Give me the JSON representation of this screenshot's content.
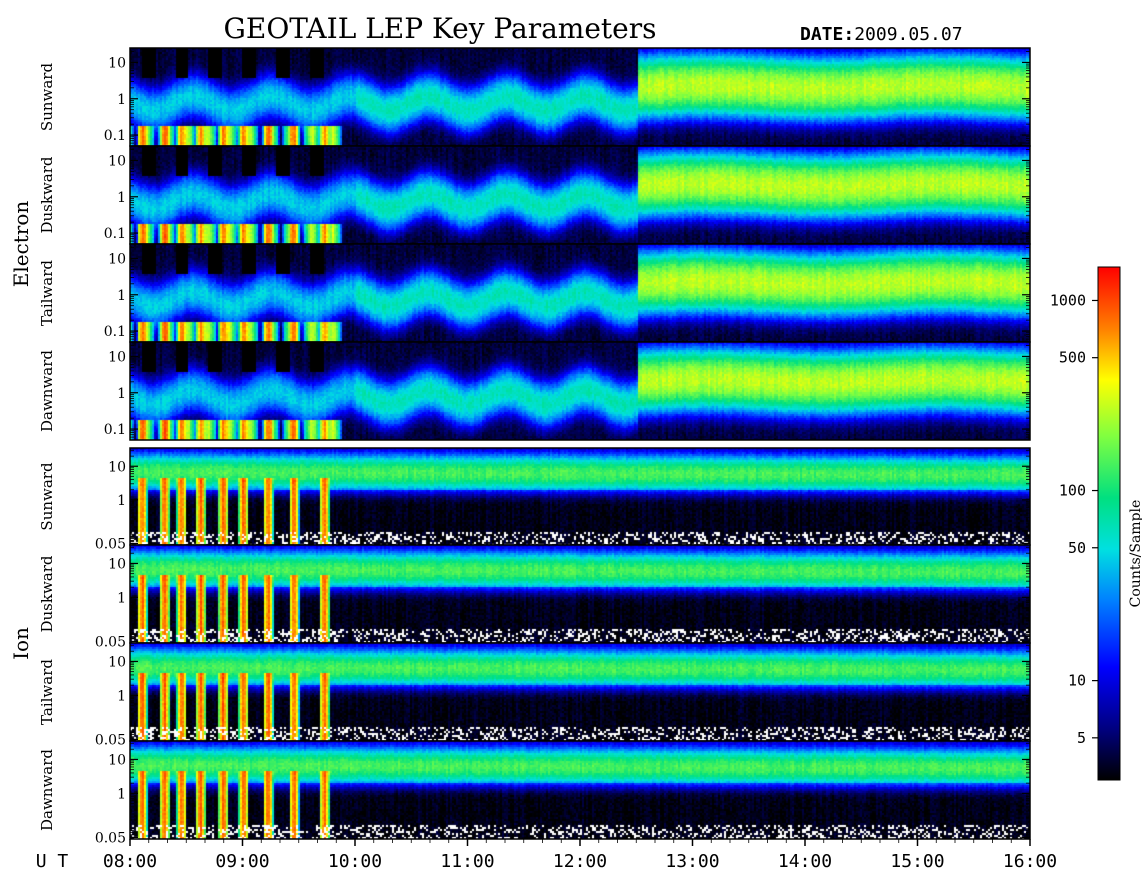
{
  "title": "GEOTAIL LEP Key Parameters",
  "date_label": "DATE:",
  "date_value": "2009.05.07",
  "groups": [
    {
      "label": "Electron"
    },
    {
      "label": "Ion"
    }
  ],
  "x_axis": {
    "label": "U T",
    "range_hours": [
      8,
      16
    ],
    "ticks": [
      {
        "hour": 8,
        "label": "08:00"
      },
      {
        "hour": 9,
        "label": "09:00"
      },
      {
        "hour": 10,
        "label": "10:00"
      },
      {
        "hour": 11,
        "label": "11:00"
      },
      {
        "hour": 12,
        "label": "12:00"
      },
      {
        "hour": 13,
        "label": "13:00"
      },
      {
        "hour": 14,
        "label": "14:00"
      },
      {
        "hour": 15,
        "label": "15:00"
      },
      {
        "hour": 16,
        "label": "16:00"
      }
    ]
  },
  "colorbar": {
    "label": "Counts/Sample",
    "scale": "log",
    "range": [
      3,
      1500
    ],
    "ticks": [
      {
        "value": 1000,
        "label": "1000"
      },
      {
        "value": 500,
        "label": "500"
      },
      {
        "value": 100,
        "label": "100"
      },
      {
        "value": 50,
        "label": "50"
      },
      {
        "value": 10,
        "label": "10"
      },
      {
        "value": 5,
        "label": "5"
      }
    ]
  },
  "chart_data": {
    "type": "heatmap",
    "x_unit": "UT hour",
    "z_scale": "log",
    "panels": [
      {
        "group": "Electron",
        "label": "Sunward",
        "y_scale": "log",
        "ylim": [
          0.05,
          25
        ],
        "y_ticks": [
          {
            "value": 10,
            "label": "10"
          },
          {
            "value": 1,
            "label": "1"
          },
          {
            "value": 0.1,
            "label": "0.1"
          }
        ]
      },
      {
        "group": "Electron",
        "label": "Duskward",
        "y_scale": "log",
        "ylim": [
          0.05,
          25
        ],
        "y_ticks": [
          {
            "value": 10,
            "label": "10"
          },
          {
            "value": 1,
            "label": "1"
          },
          {
            "value": 0.1,
            "label": "0.1"
          }
        ]
      },
      {
        "group": "Electron",
        "label": "Tailward",
        "y_scale": "log",
        "ylim": [
          0.05,
          25
        ],
        "y_ticks": [
          {
            "value": 10,
            "label": "10"
          },
          {
            "value": 1,
            "label": "1"
          },
          {
            "value": 0.1,
            "label": "0.1"
          }
        ]
      },
      {
        "group": "Electron",
        "label": "Dawnward",
        "y_scale": "log",
        "ylim": [
          0.05,
          25
        ],
        "y_ticks": [
          {
            "value": 10,
            "label": "10"
          },
          {
            "value": 1,
            "label": "1"
          },
          {
            "value": 0.1,
            "label": "0.1"
          }
        ]
      },
      {
        "group": "Ion",
        "label": "Sunward",
        "y_scale": "log",
        "ylim": [
          0.045,
          35
        ],
        "y_ticks": [
          {
            "value": 10,
            "label": "10"
          },
          {
            "value": 1,
            "label": "1"
          },
          {
            "value": 0.05,
            "label": "0.05"
          }
        ]
      },
      {
        "group": "Ion",
        "label": "Duskward",
        "y_scale": "log",
        "ylim": [
          0.045,
          35
        ],
        "y_ticks": [
          {
            "value": 10,
            "label": "10"
          },
          {
            "value": 1,
            "label": "1"
          },
          {
            "value": 0.05,
            "label": "0.05"
          }
        ]
      },
      {
        "group": "Ion",
        "label": "Tailward",
        "y_scale": "log",
        "ylim": [
          0.045,
          35
        ],
        "y_ticks": [
          {
            "value": 10,
            "label": "10"
          },
          {
            "value": 1,
            "label": "1"
          },
          {
            "value": 0.05,
            "label": "0.05"
          }
        ]
      },
      {
        "group": "Ion",
        "label": "Dawnward",
        "y_scale": "log",
        "ylim": [
          0.045,
          35
        ],
        "y_ticks": [
          {
            "value": 10,
            "label": "10"
          },
          {
            "value": 1,
            "label": "1"
          },
          {
            "value": 0.05,
            "label": "0.05"
          }
        ]
      }
    ]
  }
}
